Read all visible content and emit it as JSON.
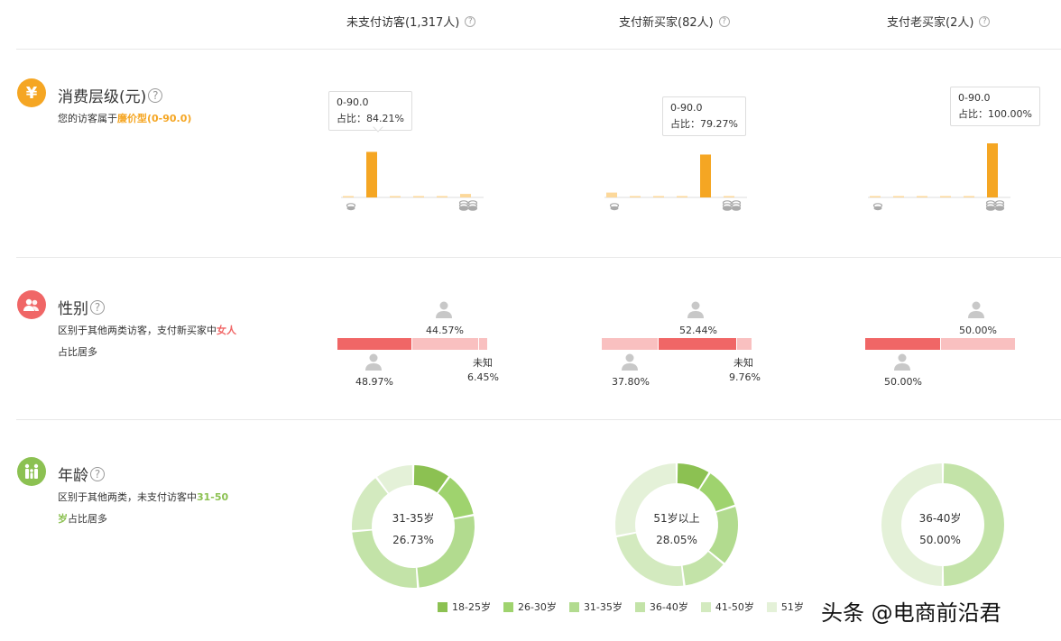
{
  "columns": [
    {
      "label": "未支付访客(1,317人)"
    },
    {
      "label": "支付新买家(82人)"
    },
    {
      "label": "支付老买家(2人)"
    }
  ],
  "help_glyph": "?",
  "consumption": {
    "title": "消费层级(元)",
    "icon_glyph": "¥",
    "desc_prefix": "您的访客属于",
    "desc_highlight": "廉价型(0-90.0)",
    "tooltips": [
      {
        "range": "0-90.0",
        "share": "占比：84.21%"
      },
      {
        "range": "0-90.0",
        "share": "占比：79.27%"
      },
      {
        "range": "0-90.0",
        "share": "占比：100.00%"
      }
    ]
  },
  "gender": {
    "title": "性别",
    "desc_prefix": "区别于其他两类访客，支付新买家中",
    "desc_highlight": "女人",
    "desc_suffix": "占比居多",
    "unknown_label": "未知",
    "columns": [
      {
        "male": "48.97%",
        "female": "44.57%",
        "unknown": "6.45%"
      },
      {
        "male": "37.80%",
        "female": "52.44%",
        "unknown": "9.76%"
      },
      {
        "male": "50.00%",
        "female": "50.00%"
      }
    ]
  },
  "age": {
    "title": "年龄",
    "desc_prefix": "区别于其他两类，未支付访客中",
    "desc_highlight": "31-50岁",
    "desc_suffix": "占比居多",
    "centers": [
      {
        "label": "31-35岁",
        "value": "26.73%"
      },
      {
        "label": "51岁以上",
        "value": "28.05%"
      },
      {
        "label": "36-40岁",
        "value": "50.00%"
      }
    ],
    "legend": [
      {
        "label": "18-25岁",
        "color": "#8cc152"
      },
      {
        "label": "26-30岁",
        "color": "#9fd36e"
      },
      {
        "label": "31-35岁",
        "color": "#b2db8f"
      },
      {
        "label": "36-40岁",
        "color": "#c3e3a8"
      },
      {
        "label": "41-50岁",
        "color": "#d3eabf"
      },
      {
        "label": "51岁",
        "color": "#e4f1d8"
      }
    ]
  },
  "watermark": "头条 @电商前沿君",
  "colors": {
    "orange": "#f5a623",
    "orange_light": "#fcd89a",
    "red": "#f06666",
    "pink": "#f9c0c0",
    "green": "#8cc152"
  },
  "chart_data": [
    {
      "type": "bar",
      "categories": [
        "1",
        "2",
        "3",
        "4",
        "5",
        "6"
      ],
      "values": [
        1,
        84.21,
        2.5,
        1,
        1,
        6.5
      ]
    },
    {
      "type": "bar",
      "categories": [
        "1",
        "2",
        "3",
        "4",
        "5",
        "6"
      ],
      "values": [
        9,
        1,
        1,
        1,
        79.27,
        2.5
      ]
    },
    {
      "type": "bar",
      "categories": [
        "1",
        "2",
        "3",
        "4",
        "5",
        "6"
      ],
      "values": [
        1,
        1,
        1,
        1,
        1,
        100
      ]
    },
    {
      "type": "pie",
      "values": [
        10,
        12,
        26.73,
        25,
        16,
        10.27
      ]
    },
    {
      "type": "pie",
      "values": [
        9,
        11,
        16,
        12,
        23.95,
        28.05
      ]
    },
    {
      "type": "pie",
      "values": [
        0,
        0,
        0,
        50,
        0,
        50
      ]
    }
  ]
}
